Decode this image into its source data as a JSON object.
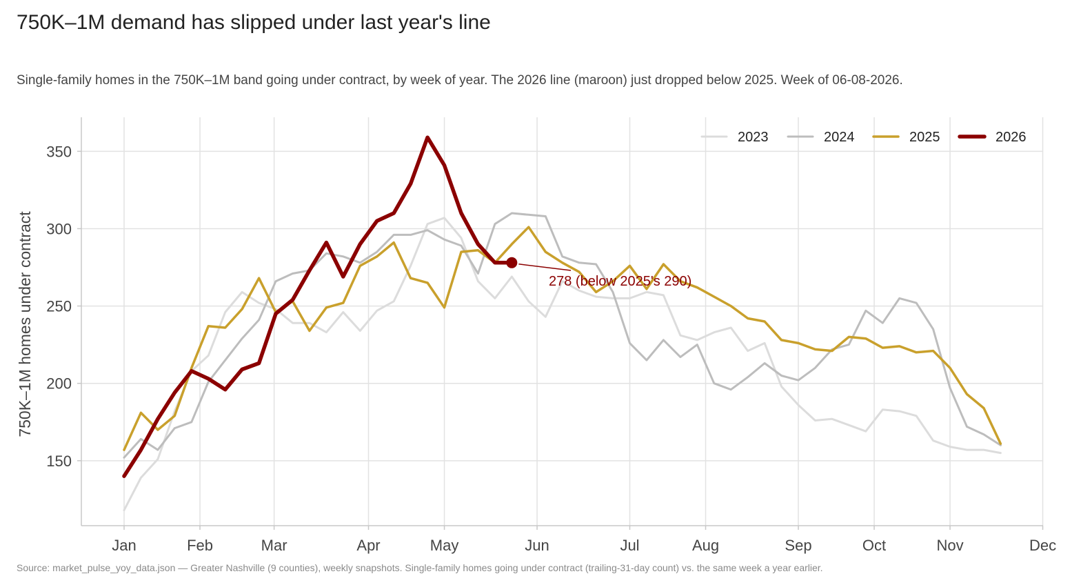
{
  "title": "750K–1M demand has slipped under last year's line",
  "subtitle": "Single-family homes in the 750K–1M band going under contract, by week of year. The 2026 line (maroon) just dropped below 2025. Week of 06-08-2026.",
  "source": "Source: market_pulse_yoy_data.json — Greater Nashville (9 counties), weekly snapshots. Single-family homes going under contract (trailing-31-day count) vs. the same week a year earlier.",
  "chart_data": {
    "type": "line",
    "xlabel": "",
    "ylabel": "750K–1M homes under contract",
    "ylim": [
      108,
      372
    ],
    "yticks": [
      150,
      200,
      250,
      300,
      350
    ],
    "xmonths": [
      "Jan",
      "Feb",
      "Mar",
      "Apr",
      "May",
      "Jun",
      "Jul",
      "Aug",
      "Sep",
      "Oct",
      "Nov",
      "Dec"
    ],
    "xweeks_of_month_start": [
      1,
      5.5,
      9.9,
      15.5,
      20,
      25.5,
      31,
      35.5,
      41,
      45.5,
      50,
      55.5
    ],
    "grid": true,
    "legend_position": "top-right",
    "series": [
      {
        "name": "2023",
        "color": "#dcdcdc",
        "width": 3,
        "values": [
          118,
          139,
          151,
          182,
          208,
          218,
          246,
          259,
          252,
          248,
          239,
          239,
          233,
          246,
          234,
          247,
          253,
          276,
          303,
          307,
          294,
          266,
          255,
          269,
          253,
          243,
          266,
          260,
          256,
          255,
          255,
          259,
          257,
          231,
          228,
          233,
          236,
          221,
          226,
          198,
          186,
          176,
          177,
          173,
          169,
          183,
          182,
          179,
          163,
          159,
          157,
          157,
          155
        ]
      },
      {
        "name": "2024",
        "color": "#bdbdbd",
        "width": 3,
        "values": [
          152,
          164,
          157,
          171,
          175,
          201,
          215,
          229,
          241,
          266,
          271,
          273,
          284,
          282,
          278,
          285,
          296,
          296,
          299,
          293,
          289,
          271,
          303,
          310,
          309,
          308,
          282,
          278,
          277,
          259,
          226,
          215,
          228,
          217,
          225,
          200,
          196,
          204,
          213,
          205,
          202,
          210,
          222,
          225,
          247,
          239,
          255,
          252,
          235,
          197,
          172,
          167,
          160
        ]
      },
      {
        "name": "2025",
        "color": "#c9a02c",
        "width": 3.5,
        "values": [
          157,
          181,
          170,
          179,
          210,
          237,
          236,
          248,
          268,
          246,
          253,
          234,
          249,
          252,
          276,
          282,
          291,
          268,
          265,
          249,
          285,
          286,
          278,
          290,
          301,
          285,
          278,
          272,
          259,
          266,
          276,
          261,
          277,
          266,
          262,
          256,
          250,
          242,
          240,
          228,
          226,
          222,
          221,
          230,
          229,
          223,
          224,
          220,
          221,
          210,
          193,
          184,
          161
        ]
      },
      {
        "name": "2026",
        "color": "#8b0000",
        "width": 5.5,
        "values": [
          140,
          157,
          177,
          194,
          208,
          203,
          196,
          209,
          213,
          245,
          254,
          273,
          291,
          269,
          290,
          305,
          310,
          329,
          359,
          341,
          310,
          290,
          278,
          278
        ]
      }
    ],
    "highlight_point": {
      "series": "2026",
      "week": 24,
      "value": 278
    },
    "annotation": "278  (below 2025's 290)"
  }
}
